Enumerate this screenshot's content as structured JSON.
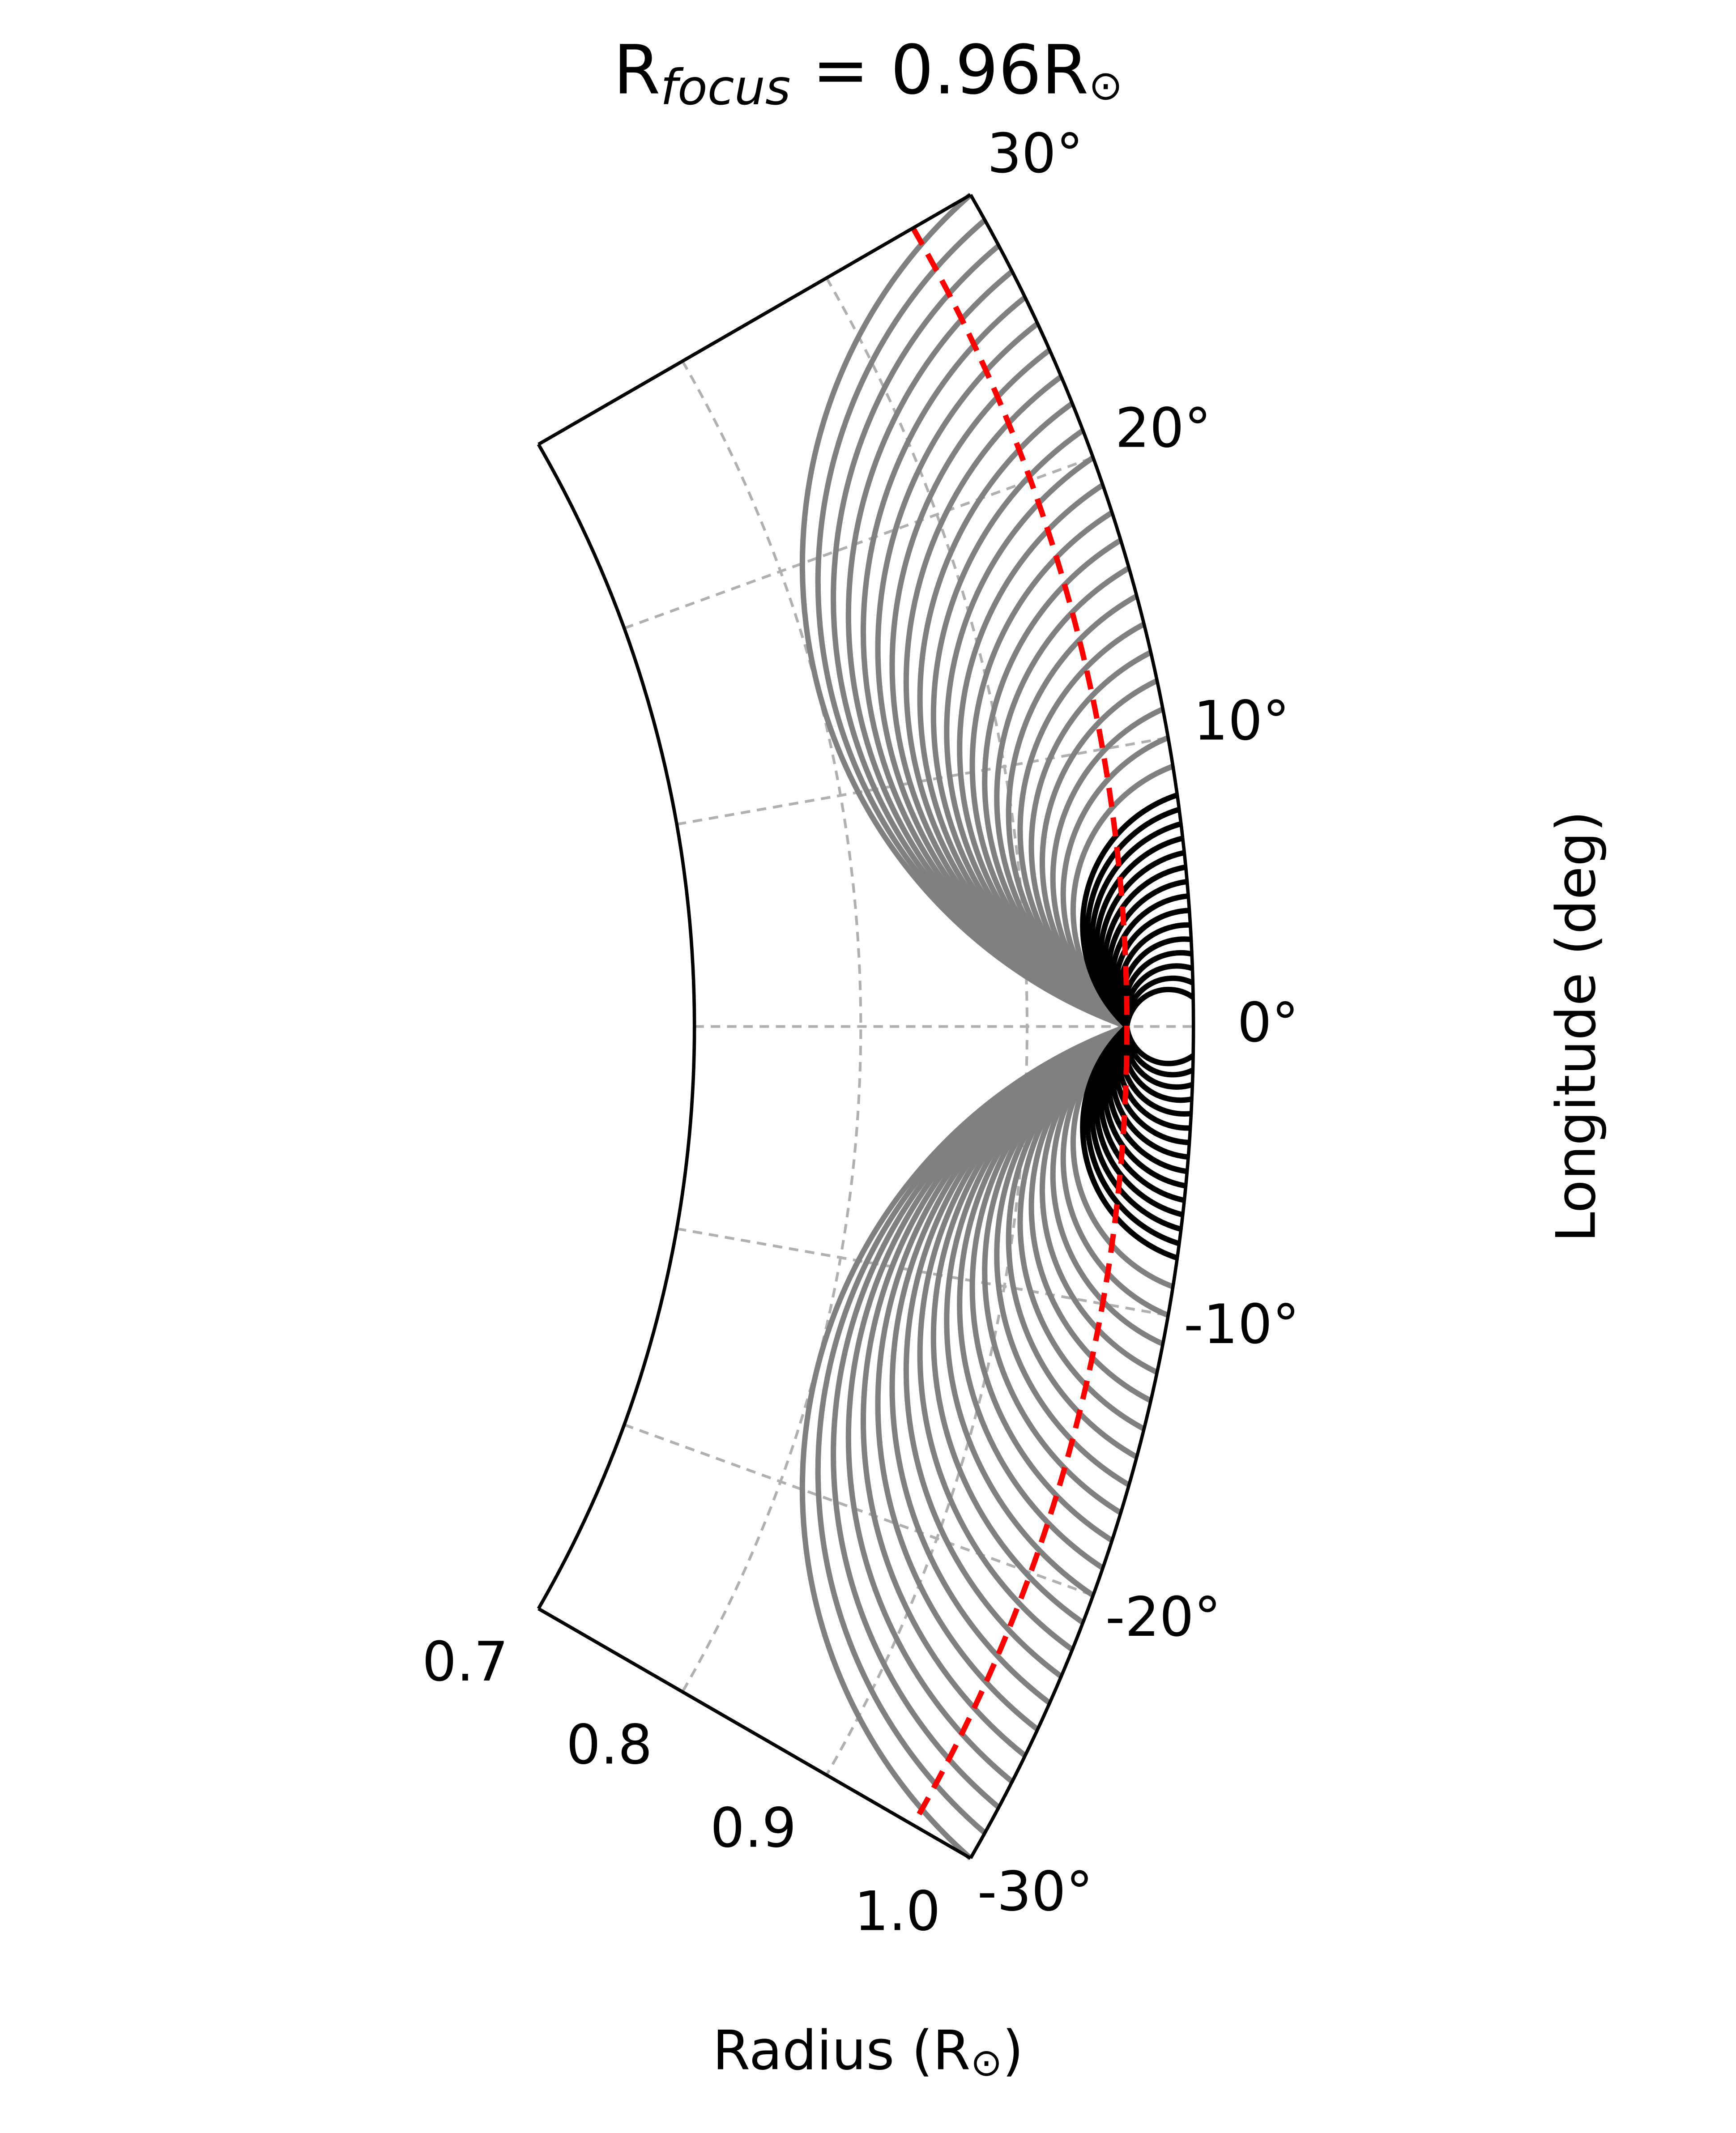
{
  "chart_data": {
    "type": "polar-loops",
    "title": [
      "R",
      "focus",
      " = 0.96R",
      "⊙"
    ],
    "xlabel": [
      "Radius (R",
      "⊙",
      ")"
    ],
    "ylabel": "Longitude (deg)",
    "rlim": [
      0.7,
      1.0
    ],
    "thetalim": [
      -30,
      30
    ],
    "rticks": [
      0.7,
      0.8,
      0.9,
      {
        "value": 1.0,
        "label": "1.0"
      }
    ],
    "thetaticks": [
      {
        "value": 30,
        "label": "30°"
      },
      {
        "value": 20,
        "label": "20°"
      },
      {
        "value": 10,
        "label": "10°"
      },
      {
        "value": 0,
        "label": "0°"
      },
      {
        "value": -10,
        "label": "-10°"
      },
      {
        "value": -20,
        "label": "-20°"
      },
      {
        "value": -30,
        "label": "-30°"
      }
    ],
    "grid": true,
    "focus_radius": 0.96,
    "focus_color": "#ff0000",
    "series": [
      {
        "color": "#808080",
        "values": [
          9,
          10,
          11,
          12,
          13,
          14,
          15,
          16,
          17,
          18,
          19,
          20,
          21,
          22,
          23,
          24,
          25,
          26,
          27,
          28,
          29,
          30,
          -9,
          -10,
          -11,
          -12,
          -13,
          -14,
          -15,
          -16,
          -17,
          -18,
          -19,
          -20,
          -21,
          -22,
          -23,
          -24,
          -25,
          -26,
          -27,
          -28,
          -29,
          -30
        ]
      },
      {
        "color": "#000000",
        "values": [
          1,
          1.5,
          2,
          2.5,
          3,
          3.5,
          4,
          4.5,
          5,
          5.5,
          6,
          6.5,
          7,
          7.5,
          8,
          -1,
          -1.5,
          -2,
          -2.5,
          -3,
          -3.5,
          -4,
          -4.5,
          -5,
          -5.5,
          -6,
          -6.5,
          -7,
          -7.5,
          -8
        ]
      }
    ]
  }
}
